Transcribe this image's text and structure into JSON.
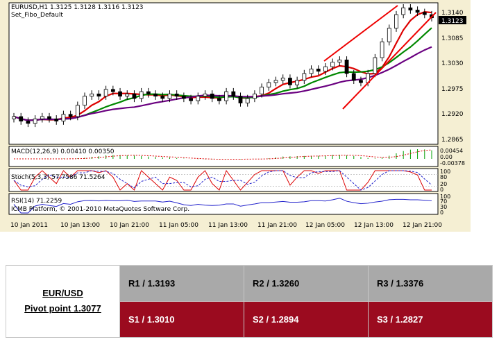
{
  "chart": {
    "header_line1": "EURUSD,H1  1.3125 1.3128 1.3116 1.3123",
    "header_line2": "Set_Fibo_Default",
    "price_scale": [
      "1.3140",
      "1.3085",
      "1.3030",
      "1.2975",
      "1.2920",
      "1.2865"
    ],
    "current_price": "1.3123",
    "macd_label": "MACD(12,26,9) 0.00410 0.00350",
    "macd_scale": [
      "0.00454",
      "0.00",
      "-0.00378"
    ],
    "stoch_label": "Stoch(5,3,3) 57.7586 71.5264",
    "stoch_scale": [
      "100",
      "80",
      "20",
      "0"
    ],
    "rsi_label": "RSI(14) 71.2259",
    "rsi_scale": [
      "100",
      "70",
      "30",
      "0"
    ],
    "copyright": "ICMB Platform, © 2001-2010 MetaQuotes Software Corp.",
    "time_labels": [
      "10 Jan 2011",
      "10 Jan 13:00",
      "10 Jan 21:00",
      "11 Jan 05:00",
      "11 Jan 13:00",
      "11 Jan 21:00",
      "12 Jan 05:00",
      "12 Jan 13:00",
      "12 Jan 21:00"
    ],
    "colors": {
      "background": "#f5efd3",
      "bull": "#ffffff",
      "bear": "#000000",
      "ma_fast": "#dd0000",
      "ma_mid": "#008800",
      "ma_slow": "#6a0080",
      "channel": "#ee0000",
      "rsi": "#2222cc"
    }
  },
  "chart_data": {
    "type": "candlestick",
    "symbol": "EURUSD",
    "timeframe": "H1",
    "ylim": [
      1.285,
      1.315
    ],
    "candles_close": [
      1.2905,
      1.2895,
      1.289,
      1.29,
      1.2905,
      1.29,
      1.2895,
      1.291,
      1.2905,
      1.293,
      1.295,
      1.2955,
      1.295,
      1.2965,
      1.296,
      1.295,
      1.2955,
      1.2945,
      1.296,
      1.2955,
      1.295,
      1.2945,
      1.2955,
      1.295,
      1.2945,
      1.294,
      1.295,
      1.2955,
      1.2945,
      1.294,
      1.296,
      1.295,
      1.2935,
      1.2945,
      1.2955,
      1.297,
      1.298,
      1.2985,
      1.299,
      1.2975,
      1.2985,
      1.3,
      1.301,
      1.3005,
      1.3015,
      1.3025,
      1.303,
      1.3,
      1.2985,
      1.298,
      1.3,
      1.3035,
      1.307,
      1.31,
      1.313,
      1.3145,
      1.314,
      1.3135,
      1.313,
      1.3123
    ],
    "macd_hist_last": 0.0041,
    "macd_signal_last": 0.0035,
    "stoch_k_last": 57.7586,
    "stoch_d_last": 71.5264,
    "rsi_last": 71.2259
  },
  "pivot": {
    "pair": "EUR/USD",
    "pivot_point": "Pivot point 1.3077",
    "resistance": [
      "R1 / 1.3193",
      "R2 / 1.3260",
      "R3 / 1.3376"
    ],
    "support": [
      "S1 / 1.3010",
      "S2 / 1.2894",
      "S3 / 1.2827"
    ]
  }
}
